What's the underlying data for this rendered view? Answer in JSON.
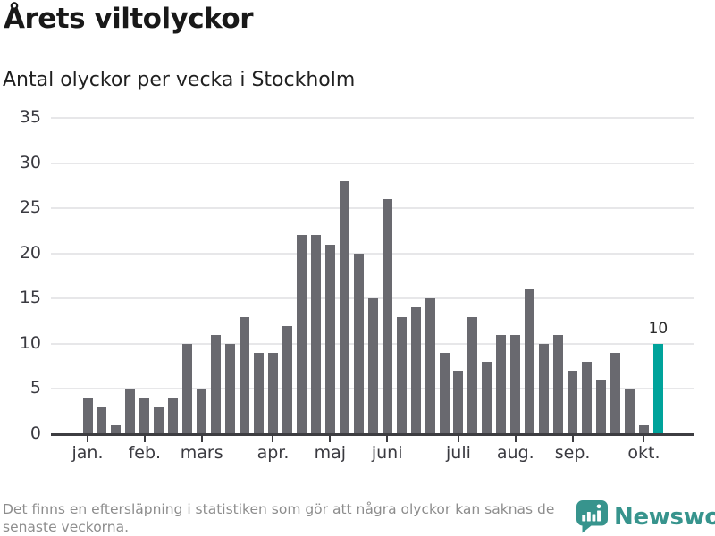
{
  "header": {
    "title": "Årets viltolyckor",
    "subtitle": "Antal olyckor per vecka i Stockholm"
  },
  "chart_data": {
    "type": "bar",
    "title": "Årets viltolyckor",
    "subtitle": "Antal olyckor per vecka i Stockholm",
    "xlabel": "",
    "ylabel": "",
    "x_unit": "vecka",
    "ylim": [
      0,
      35
    ],
    "yticks": [
      0,
      5,
      10,
      15,
      20,
      25,
      30,
      35
    ],
    "grid": true,
    "legend_position": "none",
    "values": [
      4,
      3,
      1,
      5,
      4,
      3,
      4,
      10,
      5,
      11,
      10,
      13,
      9,
      9,
      12,
      22,
      22,
      21,
      28,
      20,
      15,
      26,
      13,
      14,
      15,
      9,
      7,
      13,
      8,
      11,
      11,
      16,
      10,
      11,
      7,
      8,
      6,
      9,
      5,
      1,
      10
    ],
    "x_ticks": [
      {
        "label": "jan.",
        "bar_index": 0
      },
      {
        "label": "feb.",
        "bar_index": 4
      },
      {
        "label": "mars",
        "bar_index": 8
      },
      {
        "label": "apr.",
        "bar_index": 13
      },
      {
        "label": "maj",
        "bar_index": 17
      },
      {
        "label": "juni",
        "bar_index": 21
      },
      {
        "label": "juli",
        "bar_index": 26
      },
      {
        "label": "aug.",
        "bar_index": 30
      },
      {
        "label": "sep.",
        "bar_index": 34
      },
      {
        "label": "okt.",
        "bar_index": 39
      }
    ],
    "highlight_index": 40,
    "highlight_value_label": "10",
    "bar_color": "#69696f",
    "highlight_color": "#00a39b",
    "grid_color": "#e7e7e9",
    "axis_color": "#3d3d41"
  },
  "footer": {
    "note_lines": [
      "Det finns en eftersläpning i statistiken som gör att några olyckor kan saknas de",
      "senaste veckorna."
    ],
    "brand_name": "Newsworthy",
    "brand_color": "#37948d"
  }
}
